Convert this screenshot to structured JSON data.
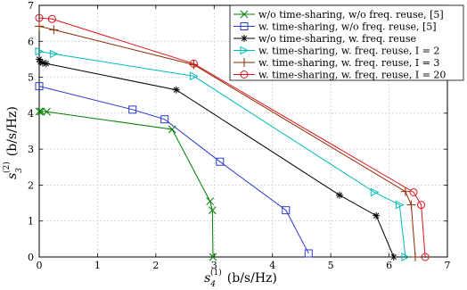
{
  "chart_data": {
    "type": "line",
    "title": "",
    "xlabel": {
      "base": "s",
      "sup": "(1)",
      "sub": "4",
      "unit": "(b/s/Hz)"
    },
    "ylabel": {
      "base": "s",
      "sup": "(2)",
      "sub": "3",
      "unit": "(b/s/Hz)"
    },
    "xlim": [
      0,
      7
    ],
    "ylim": [
      0,
      7
    ],
    "xticks": [
      0,
      1,
      2,
      3,
      4,
      5,
      6,
      7
    ],
    "yticks": [
      0,
      1,
      2,
      3,
      4,
      5,
      6,
      7
    ],
    "grid": true,
    "legend_position": "top-right",
    "series": [
      {
        "name": "w/o time-sharing, w/o freq. reuse, [5]",
        "color": "#008000",
        "marker": "x",
        "x": [
          0.0,
          0.03,
          0.13,
          2.28,
          2.93,
          2.97,
          2.98
        ],
        "y": [
          4.05,
          4.05,
          4.04,
          3.55,
          1.55,
          1.3,
          0.0
        ]
      },
      {
        "name": "w. time-sharing, w/o freq. reuse, [5]",
        "color": "#2b3ccf",
        "marker": "square",
        "x": [
          0.0,
          1.6,
          2.15,
          3.1,
          4.23,
          4.62
        ],
        "y": [
          4.75,
          4.1,
          3.83,
          2.65,
          1.3,
          0.1
        ]
      },
      {
        "name": "w/o time-sharing, w. freq. reuse",
        "color": "#000000",
        "marker": "asterisk",
        "x": [
          0.0,
          0.02,
          0.06,
          0.12,
          2.35,
          5.15,
          5.78,
          6.08
        ],
        "y": [
          5.5,
          5.43,
          5.4,
          5.38,
          4.65,
          1.72,
          1.15,
          0.0
        ]
      },
      {
        "name": "w. time-sharing, w. freq. reuse, I = 2",
        "color": "#00bcbc",
        "marker": "triangle-right",
        "x": [
          0.0,
          0.25,
          2.65,
          5.75,
          6.18,
          6.28
        ],
        "y": [
          5.72,
          5.65,
          5.03,
          1.8,
          1.45,
          0.0
        ]
      },
      {
        "name": "w. time-sharing, w. freq. reuse, I = 3",
        "color": "#8b2a00",
        "marker": "plus",
        "x": [
          0.0,
          0.25,
          2.65,
          6.28,
          6.38,
          6.45
        ],
        "y": [
          6.42,
          6.32,
          5.35,
          1.82,
          1.45,
          0.0
        ]
      },
      {
        "name": "w. time-sharing, w. freq. reuse, I = 20",
        "color": "#e0141e",
        "marker": "circle",
        "x": [
          0.0,
          0.22,
          2.65,
          6.42,
          6.55,
          6.62
        ],
        "y": [
          6.65,
          6.62,
          5.38,
          1.8,
          1.45,
          0.0
        ]
      }
    ]
  }
}
